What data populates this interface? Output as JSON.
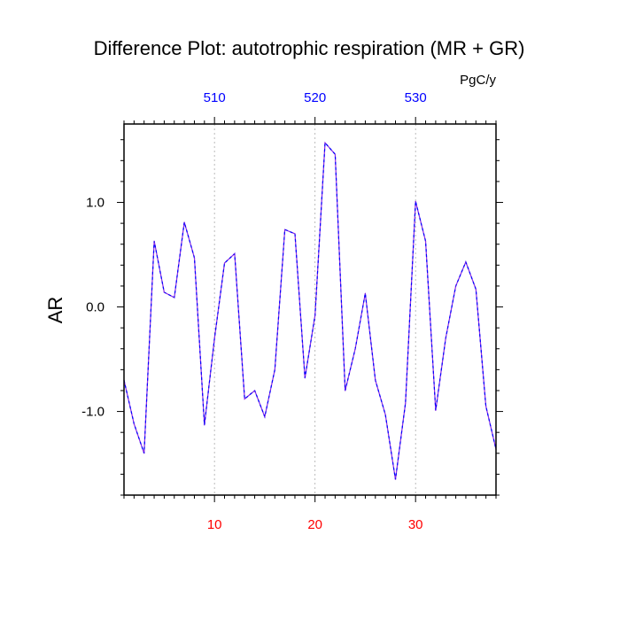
{
  "chart_data": {
    "type": "line",
    "title": "Difference Plot: autotrophic respiration (MR + GR)",
    "units": "PgC/y",
    "ylabel": "AR",
    "xlim": [
      1,
      38
    ],
    "ylim": [
      -1.8,
      1.75
    ],
    "bottom_axis": {
      "ticks": [
        10,
        20,
        30
      ],
      "labels": [
        "10",
        "20",
        "30"
      ],
      "color": "#ff0000"
    },
    "top_axis": {
      "ticks": [
        10,
        20,
        30
      ],
      "labels": [
        "510",
        "520",
        "530"
      ],
      "color": "#0000ff"
    },
    "y_ticks": [
      -1.0,
      0.0,
      1.0
    ],
    "y_tick_labels": [
      "-1.0",
      "0.0",
      "1.0"
    ],
    "vertical_gridlines_at": [
      10,
      20,
      30
    ],
    "grid": "vertical dashed at labeled x ticks",
    "series": [
      {
        "color": "#8a2be2",
        "dash_color": "#0000ff",
        "x": [
          1,
          2,
          3,
          4,
          5,
          6,
          7,
          8,
          9,
          10,
          11,
          12,
          13,
          14,
          15,
          16,
          17,
          18,
          19,
          20,
          21,
          22,
          23,
          24,
          25,
          26,
          27,
          28,
          29,
          30,
          31,
          32,
          33,
          34,
          35,
          36,
          37,
          38
        ],
        "values": [
          -0.7,
          -1.12,
          -1.4,
          0.63,
          0.14,
          0.09,
          0.81,
          0.47,
          -1.13,
          -0.3,
          0.42,
          0.51,
          -0.88,
          -0.8,
          -1.05,
          -0.6,
          0.74,
          0.7,
          -0.68,
          -0.08,
          1.57,
          1.46,
          -0.8,
          -0.4,
          0.13,
          -0.7,
          -1.03,
          -1.65,
          -0.92,
          1.01,
          0.63,
          -0.99,
          -0.3,
          0.2,
          0.43,
          0.17,
          -0.95,
          -1.36
        ]
      }
    ]
  }
}
